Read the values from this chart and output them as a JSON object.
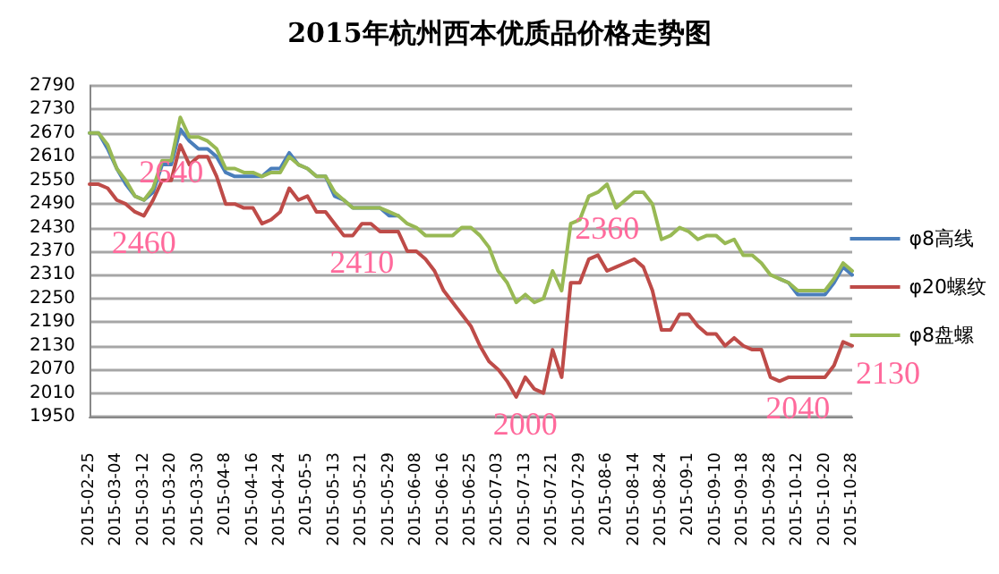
{
  "chart_data": {
    "type": "line",
    "title": "2015年杭州西本优质品价格走势图",
    "categories": [
      "2015-02-25",
      null,
      null,
      "2015-03-04",
      null,
      null,
      "2015-03-12",
      null,
      null,
      "2015-03-20",
      null,
      null,
      "2015-03-30",
      null,
      null,
      "2015-04-8",
      null,
      null,
      "2015-04-16",
      null,
      null,
      "2015-04-24",
      null,
      null,
      "2015-05-5",
      null,
      null,
      "2015-05-13",
      null,
      null,
      "2015-05-21",
      null,
      null,
      "2015-05-29",
      null,
      null,
      "2015-06-08",
      null,
      null,
      "2015-06-16",
      null,
      null,
      "2015-06-25",
      null,
      null,
      "2015-07-03",
      null,
      null,
      "2015-07-13",
      null,
      null,
      "2015-07-21",
      null,
      null,
      "2015-07-29",
      null,
      null,
      "2015-08-6",
      null,
      null,
      "2015-08-14",
      null,
      null,
      "2015-08-24",
      null,
      null,
      "2015-09-1",
      null,
      null,
      "2015-09-10",
      null,
      null,
      "2015-09-18",
      null,
      null,
      "2015-09-28",
      null,
      null,
      "2015-10-12",
      null,
      null,
      "2015-10-20",
      null,
      null,
      "2015-10-28"
    ],
    "series": [
      {
        "name": "φ8高线",
        "color": "#4a7ebb",
        "values": [
          2670,
          2670,
          2630,
          2580,
          2540,
          2510,
          2500,
          2520,
          2590,
          2590,
          2680,
          2650,
          2630,
          2630,
          2610,
          2570,
          2560,
          2560,
          2560,
          2560,
          2580,
          2580,
          2620,
          2590,
          2580,
          2560,
          2560,
          2510,
          2500,
          2480,
          2480,
          2480,
          2480,
          2460,
          2460,
          null,
          null,
          null,
          null,
          null,
          null,
          null,
          null,
          null,
          null,
          null,
          null,
          null,
          null,
          null,
          null,
          null,
          null,
          null,
          null,
          null,
          null,
          null,
          null,
          null,
          null,
          null,
          null,
          null,
          null,
          null,
          null,
          null,
          null,
          null,
          null,
          null,
          null,
          null,
          null,
          null,
          2300,
          2290,
          2260,
          2260,
          2260,
          2260,
          2290,
          2330,
          2310
        ]
      },
      {
        "name": "φ20螺纹",
        "color": "#be4b48",
        "values": [
          2540,
          2540,
          2530,
          2500,
          2490,
          2470,
          2460,
          2500,
          2550,
          2550,
          2640,
          2590,
          2610,
          2610,
          2560,
          2490,
          2490,
          2480,
          2480,
          2440,
          2450,
          2470,
          2530,
          2500,
          2510,
          2470,
          2470,
          2440,
          2410,
          2410,
          2440,
          2440,
          2420,
          2420,
          2420,
          2370,
          2370,
          2350,
          2320,
          2270,
          2240,
          2210,
          2180,
          2130,
          2090,
          2070,
          2040,
          2000,
          2050,
          2020,
          2010,
          2120,
          2050,
          2290,
          2290,
          2350,
          2360,
          2320,
          2330,
          2340,
          2350,
          2330,
          2270,
          2170,
          2170,
          2210,
          2210,
          2180,
          2160,
          2160,
          2130,
          2150,
          2130,
          2120,
          2120,
          2050,
          2040,
          2050,
          2050,
          2050,
          2050,
          2050,
          2080,
          2140,
          2130
        ]
      },
      {
        "name": "φ8盘螺",
        "color": "#98b954",
        "values": [
          2670,
          2670,
          2640,
          2580,
          2550,
          2510,
          2500,
          2530,
          2600,
          2600,
          2710,
          2660,
          2660,
          2650,
          2630,
          2580,
          2580,
          2570,
          2570,
          2560,
          2570,
          2570,
          2610,
          2590,
          2580,
          2560,
          2560,
          2520,
          2500,
          2480,
          2480,
          2480,
          2480,
          2470,
          2460,
          2440,
          2430,
          2410,
          2410,
          2410,
          2410,
          2430,
          2430,
          2410,
          2380,
          2320,
          2290,
          2240,
          2260,
          2240,
          2250,
          2320,
          2270,
          2440,
          2450,
          2510,
          2520,
          2540,
          2480,
          2500,
          2520,
          2520,
          2490,
          2400,
          2410,
          2430,
          2420,
          2400,
          2410,
          2410,
          2390,
          2400,
          2360,
          2360,
          2340,
          2310,
          2300,
          2290,
          2270,
          2270,
          2270,
          2270,
          2300,
          2340,
          2320
        ]
      }
    ],
    "ylim": [
      1950,
      2790
    ],
    "yticks": [
      1950,
      2010,
      2070,
      2130,
      2190,
      2250,
      2310,
      2370,
      2430,
      2490,
      2550,
      2610,
      2670,
      2730,
      2790
    ],
    "grid": "y",
    "legend": "right",
    "marker": "none",
    "line_style": "solid",
    "annotations": [
      {
        "text": "2640",
        "x": "2015-03-20",
        "y": 2640
      },
      {
        "text": "2460",
        "x": "2015-03-12",
        "y": 2460
      },
      {
        "text": "2410",
        "x": "2015-05-21",
        "y": 2410
      },
      {
        "text": "2000",
        "x": "2015-07-13",
        "y": 2000
      },
      {
        "text": "2360",
        "x": "2015-08-6",
        "y": 2360
      },
      {
        "text": "2040",
        "x": "2015-10-12",
        "y": 2040
      },
      {
        "text": "2130",
        "x": "2015-10-28",
        "y": 2130
      }
    ]
  }
}
